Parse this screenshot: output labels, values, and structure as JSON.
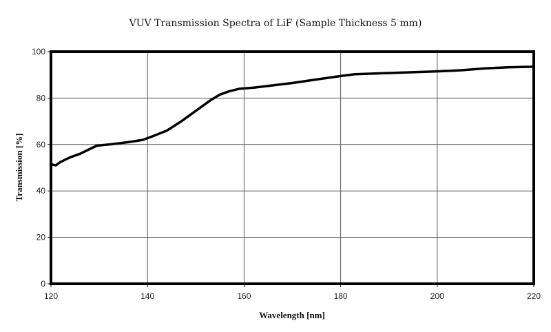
{
  "chart_data": {
    "type": "line",
    "title": "VUV Transmission Spectra of LiF (Sample Thickness 5 mm)",
    "xlabel": "Wavelength [nm]",
    "ylabel": "Transmission  [%]",
    "xlim": [
      120,
      220
    ],
    "ylim": [
      0,
      100
    ],
    "xticks": [
      120,
      140,
      160,
      180,
      200,
      220
    ],
    "yticks": [
      0,
      20,
      40,
      60,
      80,
      100
    ],
    "xtick_labels": [
      "120",
      "140",
      "160",
      "180",
      "200",
      "220"
    ],
    "ytick_labels": [
      "0",
      "20",
      "40",
      "60",
      "80",
      "100"
    ],
    "grid": true,
    "legend": "none",
    "series": [
      {
        "name": "LiF 5 mm",
        "color": "#000000",
        "x": [
          120,
          121,
          122,
          124,
          126,
          128,
          129.5,
          132,
          136,
          139,
          141,
          144,
          147,
          150,
          153,
          155,
          157,
          159,
          162,
          166,
          170,
          175,
          180,
          183,
          190,
          200,
          205,
          210,
          215,
          220
        ],
        "y": [
          51.5,
          51,
          52.5,
          54.5,
          56,
          58,
          59.5,
          60,
          61,
          62,
          63.5,
          66,
          70,
          74.5,
          79,
          81.5,
          83,
          84,
          84.5,
          85.5,
          86.5,
          88,
          89.5,
          90.3,
          90.8,
          91.5,
          92,
          92.8,
          93.3,
          93.5
        ]
      }
    ]
  }
}
